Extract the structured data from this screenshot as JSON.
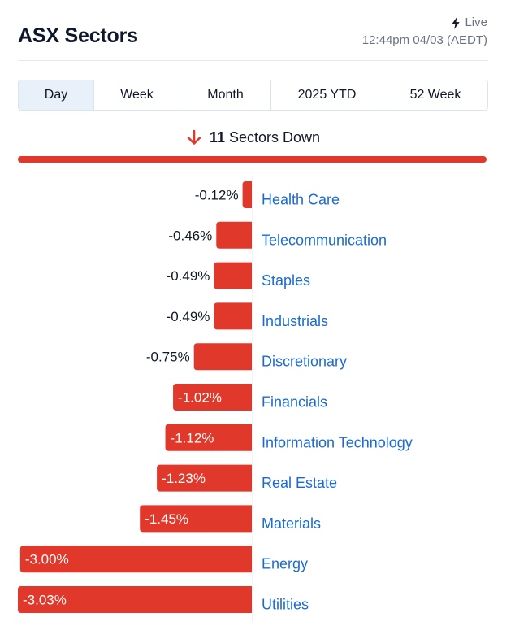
{
  "header": {
    "title": "ASX Sectors",
    "live_label": "Live",
    "timestamp": "12:44pm 04/03 (AEDT)",
    "live_icon": "lightning-bolt-icon"
  },
  "tabs": [
    {
      "label": "Day",
      "active": true
    },
    {
      "label": "Week",
      "active": false
    },
    {
      "label": "Month",
      "active": false
    },
    {
      "label": "2025 YTD",
      "active": false
    },
    {
      "label": "52 Week",
      "active": false
    }
  ],
  "summary": {
    "icon": "arrow-down-icon",
    "count": "11",
    "text": "Sectors Down"
  },
  "colors": {
    "negative": "#e0392b",
    "label": "#1a6ad6",
    "accent": "#e0392b"
  },
  "chart_data": {
    "type": "bar",
    "orientation": "horizontal",
    "categories": [
      "Health Care",
      "Telecommunication",
      "Staples",
      "Industrials",
      "Discretionary",
      "Financials",
      "Information Technology",
      "Real Estate",
      "Materials",
      "Energy",
      "Utilities"
    ],
    "values": [
      -0.12,
      -0.46,
      -0.49,
      -0.49,
      -0.75,
      -1.02,
      -1.12,
      -1.23,
      -1.45,
      -3.0,
      -3.03
    ],
    "value_labels": [
      "-0.12%",
      "-0.46%",
      "-0.49%",
      "-0.49%",
      "-0.75%",
      "-1.02%",
      "-1.12%",
      "-1.23%",
      "-1.45%",
      "-3.00%",
      "-3.03%"
    ],
    "unit": "%",
    "xlim": [
      -3.03,
      0
    ],
    "grid": false,
    "legend": "none"
  }
}
